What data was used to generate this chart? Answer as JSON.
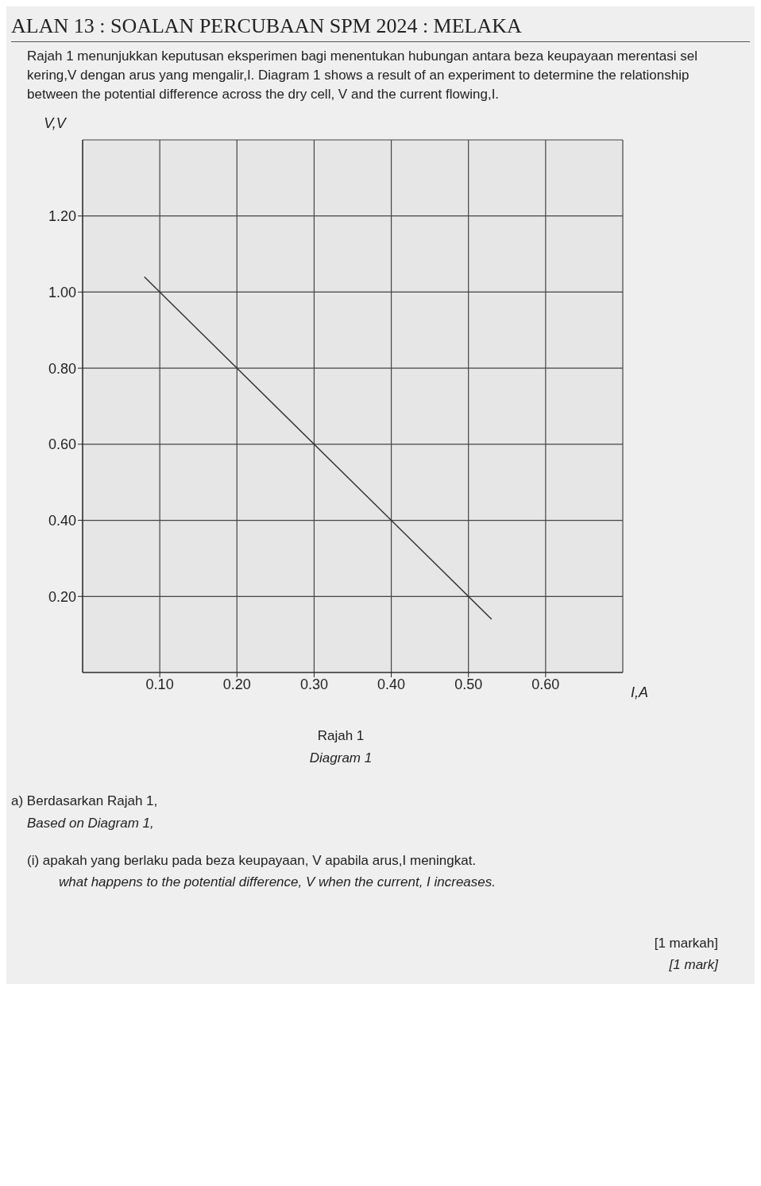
{
  "chart_data": {
    "type": "line",
    "title": "ALAN 13 : SOALAN PERCUBAAN SPM 2024 : MELAKA",
    "subtitle": "Rajah 1 menunjukkan keputusan eksperimen bagi menentukan hubungan antara beza keupayaan merentasi sel kering,V dengan arus yang mengalir,I. Diagram 1 shows a result of an experiment to determine the relationship between the potential difference across the dry cell, V and the current flowing,I.",
    "xlabel": "I,A",
    "ylabel": "V,V",
    "x": [
      0.08,
      0.53
    ],
    "series": [
      {
        "color": "#333333",
        "values": [
          1.04,
          0.14
        ]
      }
    ],
    "xlim": [
      0,
      0.7
    ],
    "ylim": [
      0,
      1.4
    ],
    "xticks": [
      {
        "value": 0.1,
        "label": "0.10"
      },
      {
        "value": 0.2,
        "label": "0.20"
      },
      {
        "value": 0.3,
        "label": "0.30"
      },
      {
        "value": 0.4,
        "label": "0.40"
      },
      {
        "value": 0.5,
        "label": "0.50"
      },
      {
        "value": 0.6,
        "label": "0.60"
      }
    ],
    "yticks": [
      {
        "value": 0.2,
        "label": "0.20"
      },
      {
        "value": 0.4,
        "label": "0.40"
      },
      {
        "value": 0.6,
        "label": "0.60"
      },
      {
        "value": 0.8,
        "label": "0.80"
      },
      {
        "value": 1.0,
        "label": "1.00"
      },
      {
        "value": 1.2,
        "label": "1.20"
      }
    ],
    "grid": true,
    "marker": "none",
    "line_style": "solid",
    "annotations": [
      "Rajah 1",
      "Diagram 1",
      "a) Berdasarkan Rajah 1,",
      "Based on Diagram 1,",
      "(i) apakah yang berlaku pada beza keupayaan, V apabila arus,I meningkat.",
      "what happens to the potential difference, V when the current, I increases.",
      "[1 markah]",
      "[1 mark]"
    ]
  }
}
